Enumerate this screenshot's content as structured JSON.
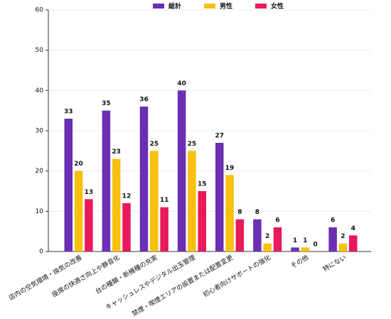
{
  "chart_data": {
    "type": "bar",
    "categories": [
      "店内の空気環境・換気の改善",
      "座席の快適さ向上や静音化",
      "台の種類・新機種の充実",
      "キャッシュレスやデジタル出玉管理",
      "禁煙・喫煙エリアの設置または配置変更",
      "初心者向けサポートの強化",
      "その他",
      "特にない"
    ],
    "series": [
      {
        "name": "総計",
        "color": "#6a2fb3",
        "values": [
          33,
          35,
          36,
          40,
          27,
          8,
          1,
          6
        ]
      },
      {
        "name": "男性",
        "color": "#f8c00f",
        "values": [
          20,
          23,
          25,
          25,
          19,
          2,
          1,
          2
        ]
      },
      {
        "name": "女性",
        "color": "#e81a5a",
        "values": [
          13,
          12,
          11,
          15,
          8,
          6,
          0,
          4
        ]
      }
    ],
    "ylim": [
      0,
      60
    ],
    "yticks": [
      0,
      10,
      20,
      30,
      40,
      50,
      60
    ],
    "grid": true,
    "legend": "top"
  }
}
